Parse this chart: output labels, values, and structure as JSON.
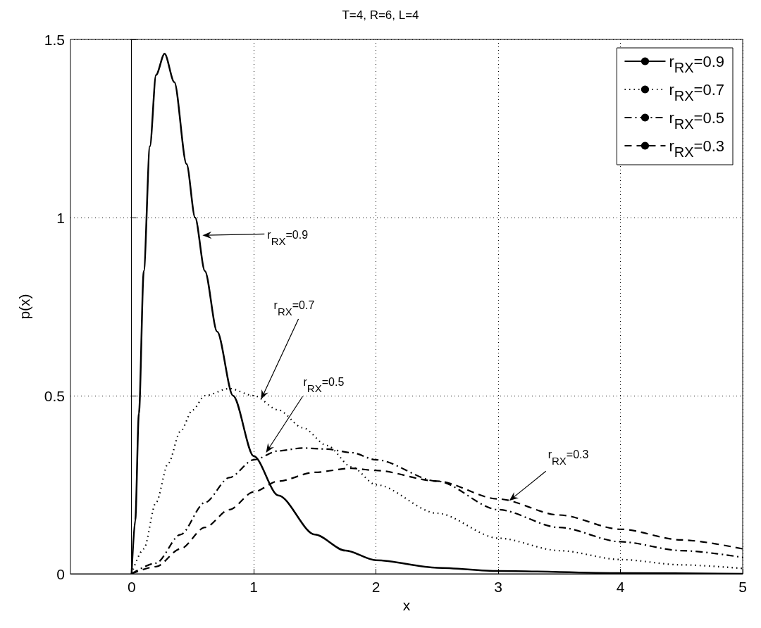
{
  "chart_data": {
    "type": "line",
    "title": "T=4, R=6, L=4",
    "xlabel": "x",
    "ylabel": "p(x)",
    "xlim": [
      -0.5,
      5
    ],
    "xticks": [
      0,
      1,
      2,
      3,
      4,
      5
    ],
    "ylim": [
      0,
      1.5
    ],
    "yticks": [
      0,
      0.5,
      1,
      1.5
    ],
    "grid": true,
    "legend": "top right",
    "marker": "none",
    "series": [
      {
        "name": "r$_{RX}$=0.9",
        "color": "#000000",
        "line_style": "solid",
        "x": [
          0,
          0.03,
          0.06,
          0.1,
          0.15,
          0.2,
          0.27,
          0.35,
          0.45,
          0.52,
          0.6,
          0.7,
          0.83,
          1,
          1.2,
          1.5,
          1.75,
          2,
          2.5,
          3,
          4,
          5
        ],
        "values": [
          0,
          0.15,
          0.45,
          0.85,
          1.2,
          1.4,
          1.46,
          1.38,
          1.15,
          1.0,
          0.85,
          0.68,
          0.5,
          0.33,
          0.22,
          0.11,
          0.065,
          0.038,
          0.017,
          0.008,
          0.002,
          0
        ]
      },
      {
        "name": "r$_{RX}$=0.7",
        "color": "#000000",
        "line_style": "dotted",
        "x": [
          0,
          0.1,
          0.2,
          0.3,
          0.4,
          0.5,
          0.6,
          0.8,
          1,
          1.2,
          1.4,
          1.6,
          1.8,
          2,
          2.5,
          3,
          3.5,
          4,
          4.5,
          5
        ],
        "values": [
          0,
          0.07,
          0.2,
          0.31,
          0.4,
          0.46,
          0.5,
          0.52,
          0.5,
          0.46,
          0.41,
          0.36,
          0.3,
          0.25,
          0.17,
          0.1,
          0.065,
          0.04,
          0.025,
          0.015
        ]
      },
      {
        "name": "r$_{RX}$=0.5",
        "color": "#000000",
        "line_style": "dashdot",
        "x": [
          0,
          0.2,
          0.4,
          0.6,
          0.8,
          1,
          1.2,
          1.4,
          1.6,
          1.8,
          2,
          2.5,
          3,
          3.5,
          4,
          4.5,
          5
        ],
        "values": [
          0,
          0.03,
          0.11,
          0.2,
          0.27,
          0.32,
          0.345,
          0.353,
          0.35,
          0.34,
          0.32,
          0.26,
          0.18,
          0.13,
          0.09,
          0.065,
          0.046
        ]
      },
      {
        "name": "r$_{RX}$=0.3",
        "color": "#000000",
        "line_style": "dashed",
        "x": [
          0,
          0.2,
          0.4,
          0.6,
          0.8,
          1,
          1.2,
          1.5,
          1.8,
          2,
          2.5,
          3,
          3.5,
          4,
          4.5,
          5
        ],
        "values": [
          0,
          0.02,
          0.07,
          0.13,
          0.18,
          0.23,
          0.26,
          0.285,
          0.296,
          0.29,
          0.26,
          0.21,
          0.165,
          0.125,
          0.095,
          0.07
        ]
      }
    ],
    "annotations": [
      {
        "text": "r$_{RX}$=0.9",
        "x": 0.58,
        "y": 0.95
      },
      {
        "text": "r$_{RX}$=0.7",
        "x": 1.06,
        "y": 0.49
      },
      {
        "text": "r$_{RX}$=0.5",
        "x": 1.1,
        "y": 0.34
      },
      {
        "text": "r$_{RX}$=0.3",
        "x": 3.09,
        "y": 0.205
      }
    ]
  }
}
